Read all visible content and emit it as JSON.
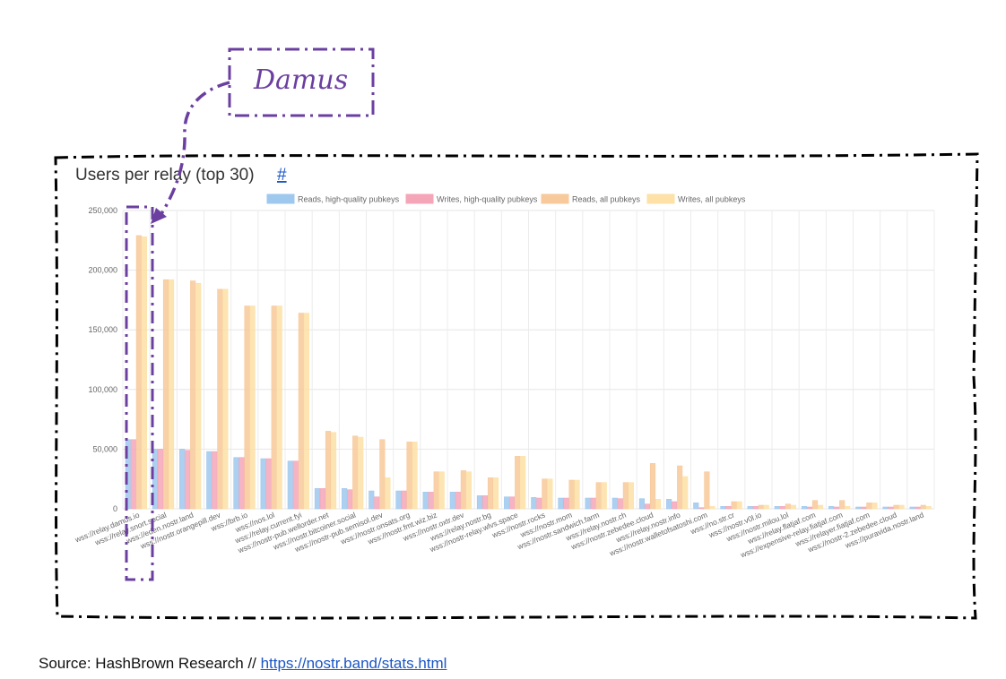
{
  "annotation": {
    "label": "Damus"
  },
  "source": {
    "prefix": "Source: HashBrown Research // ",
    "link_text": "https://nostr.band/stats.html"
  },
  "colors": {
    "annotation": "#6b3fa0",
    "link": "#1a56c7",
    "frame": "#000000"
  },
  "chart_data": {
    "type": "bar",
    "title": "Users per relay (top 30)",
    "title_link": "#",
    "legend_position": "top",
    "grid": true,
    "ylim": [
      0,
      250000
    ],
    "yticks": [
      "250,000",
      "200,000",
      "150,000",
      "100,000",
      "50,000",
      "0"
    ],
    "categories": [
      "wss://relay.damus.io",
      "wss://relay.snort.social",
      "wss://eden.nostr.land",
      "wss://nostr.orangepill.dev",
      "wss://brb.io",
      "wss://nos.lol",
      "wss://relay.current.fyi",
      "wss://nostr-pub.wellorder.net",
      "wss://nostr.bitcoiner.social",
      "wss://nostr-pub.semisol.dev",
      "wss://nostr.onsats.org",
      "wss://nostr.fmt.wiz.biz",
      "wss://nostr.oxtr.dev",
      "wss://relay.nostr.bg",
      "wss://nostr-relay.wlvs.space",
      "wss://nostr.rocks",
      "wss://nostr.mom",
      "wss://nostr.sandwich.farm",
      "wss://relay.nostr.ch",
      "wss://nostr.zebedee.cloud",
      "wss://relay.nostr.info",
      "wss://nostr.walletofsatoshi.com",
      "wss://no.str.cr",
      "wss://nostr.v0l.io",
      "wss://nostr.milou.lol",
      "wss://relay.flatjaf.com",
      "wss://expensive-relay.fiatjaf.com",
      "wss://relayer.fiatjaf.com",
      "wss://nostr-2.zebedee.cloud",
      "wss://puravida.nostr.land"
    ],
    "series": [
      {
        "name": "Reads, high-quality pubkeys",
        "color": "#9fc8ee",
        "values": [
          58000,
          50000,
          50000,
          48000,
          43000,
          42000,
          40000,
          17000,
          17000,
          15000,
          15000,
          14000,
          14000,
          11000,
          10000,
          9500,
          9000,
          9000,
          9000,
          8500,
          8000,
          5000,
          2000,
          2000,
          2000,
          2000,
          2000,
          1500,
          1500,
          1500
        ]
      },
      {
        "name": "Writes, high-quality pubkeys",
        "color": "#f4a6b8",
        "values": [
          58000,
          50000,
          49000,
          48000,
          43000,
          42000,
          40000,
          17000,
          16000,
          10000,
          15000,
          14000,
          14000,
          11000,
          10000,
          9000,
          9000,
          9000,
          8500,
          4000,
          6000,
          1000,
          2000,
          2000,
          2000,
          1500,
          1500,
          1500,
          1500,
          1500
        ]
      },
      {
        "name": "Reads, all pubkeys",
        "color": "#f8c99a",
        "values": [
          229000,
          192000,
          191000,
          184000,
          170000,
          170000,
          164000,
          65000,
          61000,
          58000,
          56000,
          31000,
          32000,
          26000,
          44000,
          25000,
          24000,
          22000,
          22000,
          38000,
          36000,
          31000,
          6000,
          3000,
          4000,
          7000,
          7000,
          5000,
          3000,
          3000
        ]
      },
      {
        "name": "Writes, all pubkeys",
        "color": "#fde1a6",
        "values": [
          228000,
          192000,
          189000,
          184000,
          170000,
          170000,
          164000,
          64000,
          60000,
          26000,
          56000,
          31000,
          31000,
          26000,
          44000,
          25000,
          24000,
          22000,
          22000,
          8000,
          27000,
          2000,
          6000,
          3000,
          3000,
          3000,
          2000,
          5000,
          3000,
          2000
        ]
      }
    ]
  }
}
